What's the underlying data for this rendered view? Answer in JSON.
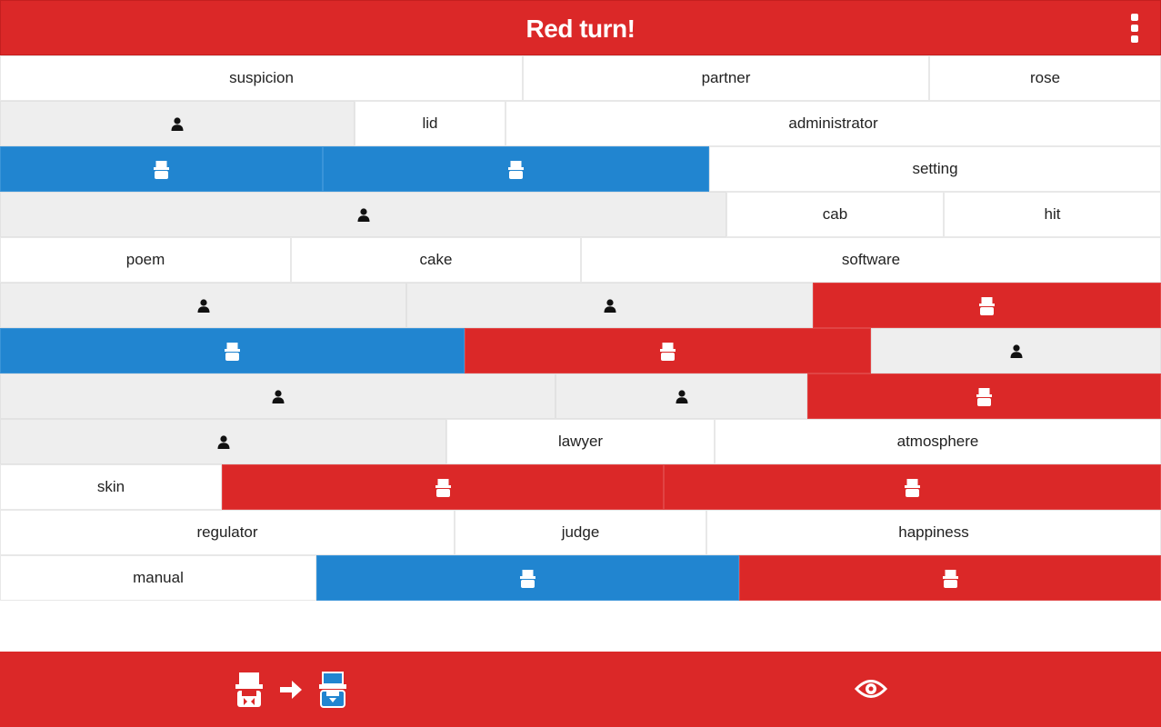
{
  "header": {
    "title": "Red turn!"
  },
  "icons": {
    "menu": "more-vert-icon",
    "neutral_card": "person-icon",
    "agent_card": "spy-icon",
    "switch_arrow": "arrow-right-icon",
    "reveal": "eye-icon"
  },
  "colors": {
    "red": "#db2828",
    "blue": "#2185d0",
    "neutral": "#eeeeee",
    "word_bg": "#ffffff"
  },
  "board": {
    "rows": [
      [
        {
          "word": "suspicion",
          "type": "word"
        },
        {
          "word": "partner",
          "type": "word"
        },
        {
          "word": "rose",
          "type": "word"
        }
      ],
      [
        {
          "type": "neutral"
        },
        {
          "word": "lid",
          "type": "word"
        },
        {
          "word": "administrator",
          "type": "word"
        }
      ],
      [
        {
          "type": "blue"
        },
        {
          "type": "blue"
        },
        {
          "word": "setting",
          "type": "word"
        }
      ],
      [
        {
          "type": "neutral"
        },
        {
          "word": "cab",
          "type": "word"
        },
        {
          "word": "hit",
          "type": "word"
        }
      ],
      [
        {
          "word": "poem",
          "type": "word"
        },
        {
          "word": "cake",
          "type": "word"
        },
        {
          "word": "software",
          "type": "word"
        }
      ],
      [
        {
          "type": "neutral"
        },
        {
          "type": "neutral"
        },
        {
          "type": "red"
        }
      ],
      [
        {
          "type": "blue"
        },
        {
          "type": "red"
        },
        {
          "type": "neutral"
        }
      ],
      [
        {
          "type": "neutral"
        },
        {
          "type": "neutral"
        },
        {
          "type": "red"
        }
      ],
      [
        {
          "type": "neutral"
        },
        {
          "word": "lawyer",
          "type": "word"
        },
        {
          "word": "atmosphere",
          "type": "word"
        }
      ],
      [
        {
          "word": "skin",
          "type": "word"
        },
        {
          "type": "red"
        },
        {
          "type": "red"
        }
      ],
      [
        {
          "word": "regulator",
          "type": "word"
        },
        {
          "word": "judge",
          "type": "word"
        },
        {
          "word": "happiness",
          "type": "word"
        }
      ],
      [
        {
          "word": "manual",
          "type": "word"
        },
        {
          "type": "blue"
        },
        {
          "type": "red"
        }
      ]
    ]
  },
  "footer": {
    "switch_from": "red",
    "switch_to": "blue"
  }
}
